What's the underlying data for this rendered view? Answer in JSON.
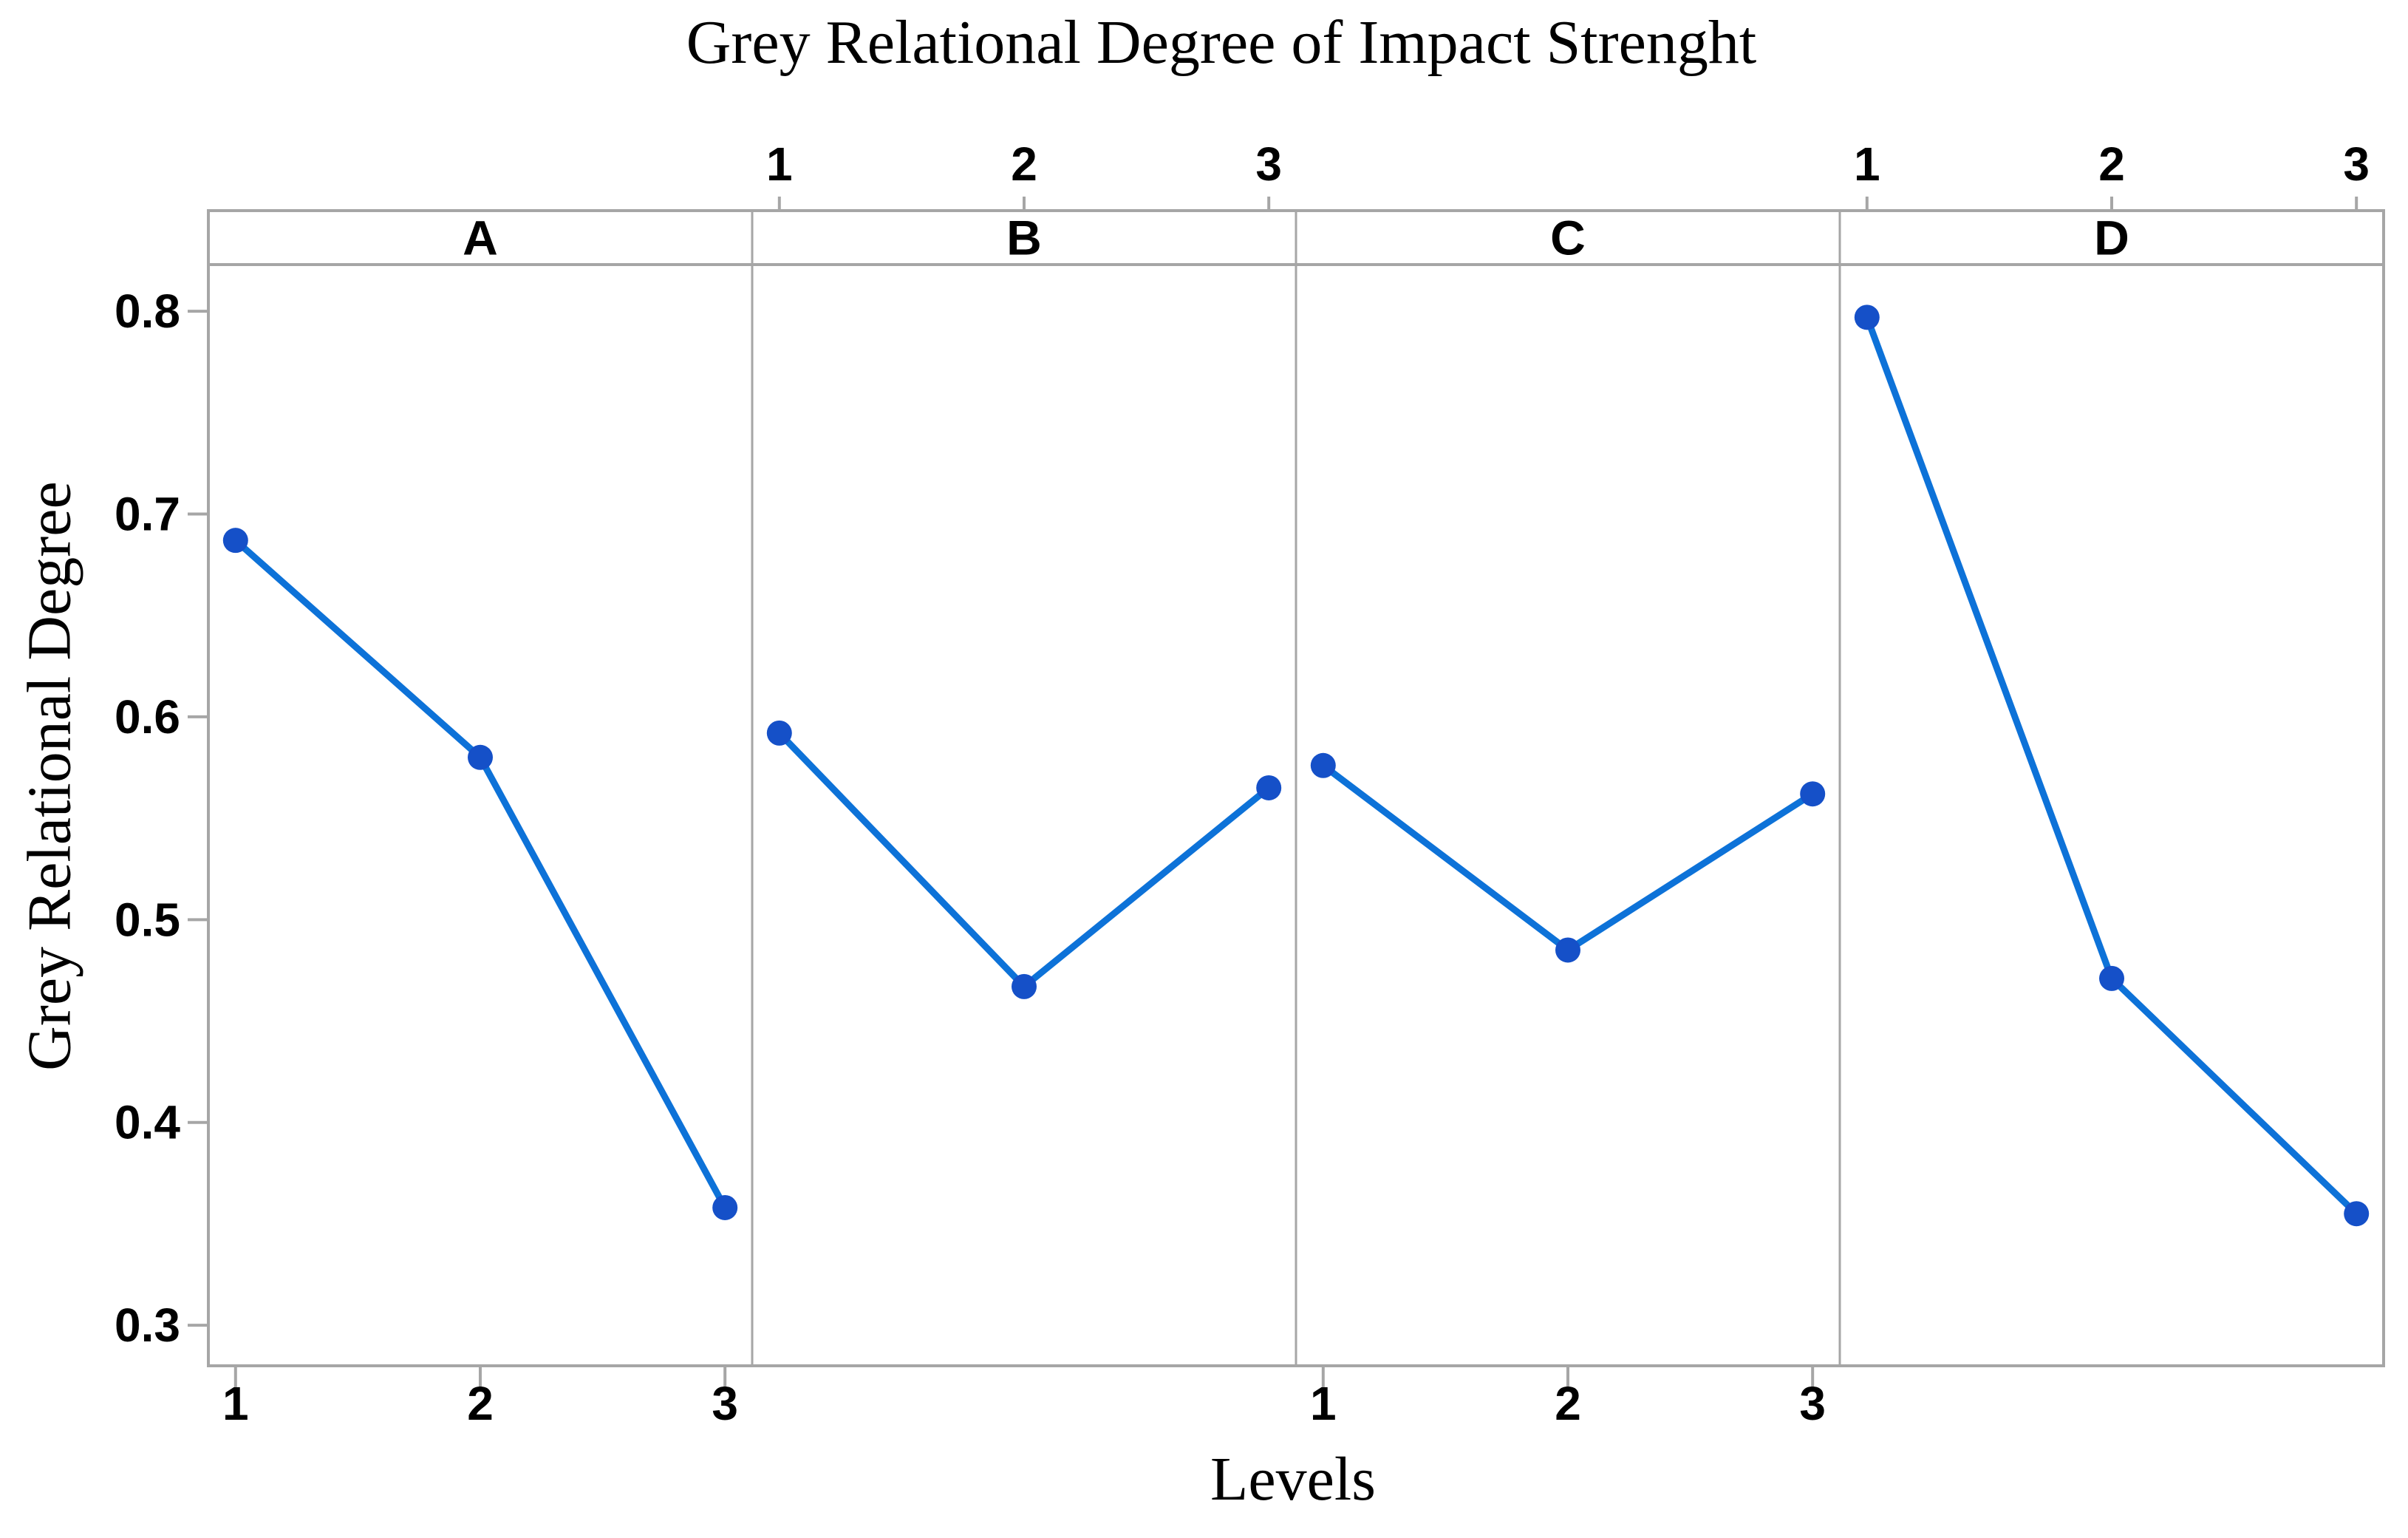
{
  "figure": {
    "title": "Grey Relational Degree of Impact Strenght",
    "x_axis_label": "Levels",
    "y_axis_label": "Grey Relational Degree"
  },
  "chart_data": {
    "type": "line",
    "subtype": "main-effects-plot-4-panels",
    "title": "Grey Relational Degree of Impact Strenght",
    "xlabel": "Levels",
    "ylabel": "Grey Relational Degree",
    "grid": "off",
    "legend": "none",
    "levels": [
      "1",
      "2",
      "3"
    ],
    "ylim": [
      0.28,
      0.823
    ],
    "yticks": [
      {
        "value": 0.8,
        "label": "0.8"
      },
      {
        "value": 0.7,
        "label": "0.7"
      },
      {
        "value": 0.6,
        "label": "0.6"
      },
      {
        "value": 0.5,
        "label": "0.5"
      },
      {
        "value": 0.4,
        "label": "0.4"
      },
      {
        "value": 0.3,
        "label": "0.3"
      }
    ],
    "panels": [
      {
        "label": "A",
        "x_tick_side": "bottom",
        "x": [
          1,
          2,
          3
        ],
        "values": [
          0.687,
          0.58,
          0.358
        ]
      },
      {
        "label": "B",
        "x_tick_side": "top",
        "x": [
          1,
          2,
          3
        ],
        "values": [
          0.592,
          0.467,
          0.565
        ]
      },
      {
        "label": "C",
        "x_tick_side": "bottom",
        "x": [
          1,
          2,
          3
        ],
        "values": [
          0.576,
          0.485,
          0.562
        ]
      },
      {
        "label": "D",
        "x_tick_side": "top",
        "x": [
          1,
          2,
          3
        ],
        "values": [
          0.797,
          0.471,
          0.355
        ]
      }
    ],
    "colors": {
      "line": "#0d72d8",
      "marker": "#1550c8",
      "frame": "#a6a6a6",
      "text": "#000000",
      "background": "#ffffff"
    }
  }
}
